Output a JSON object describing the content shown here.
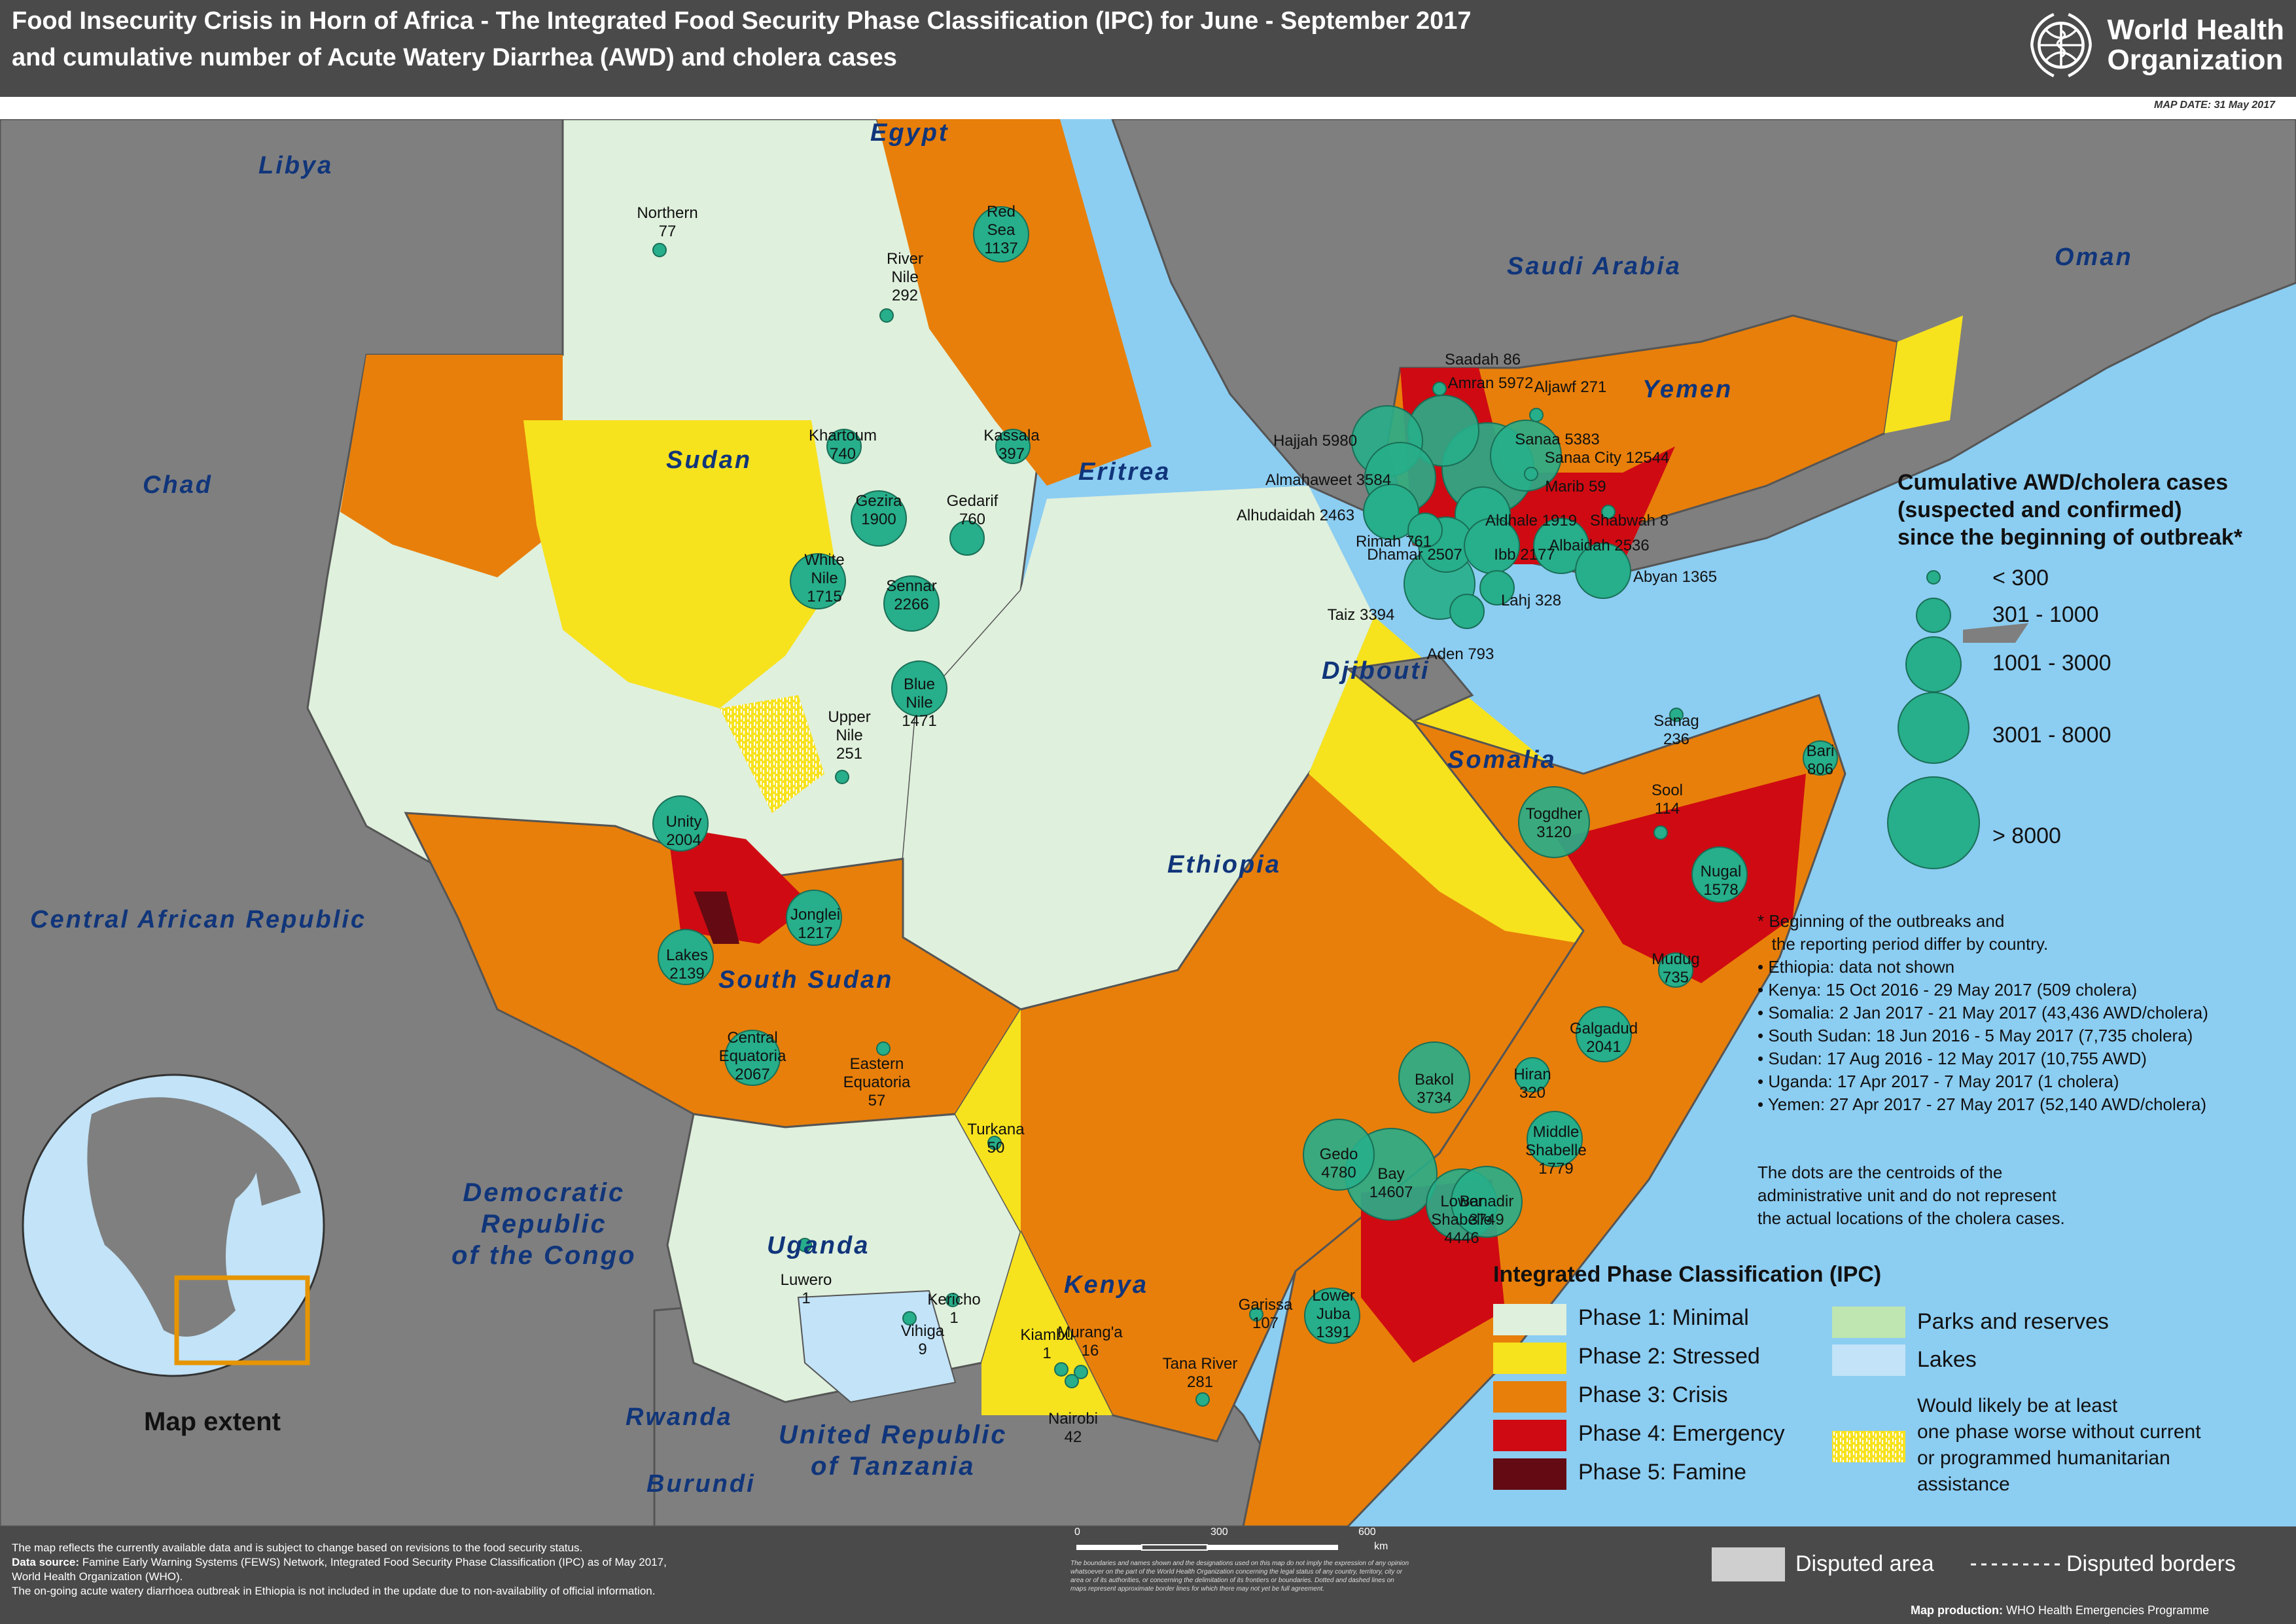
{
  "header": {
    "title_line1": "Food Insecurity Crisis in Horn of Africa - The Integrated Food Security Phase Classification (IPC) for June - September 2017",
    "title_line2": "and cumulative number of Acute Watery Diarrhea (AWD) and cholera cases",
    "logo_text_line1": "World Health",
    "logo_text_line2": "Organization",
    "map_date": "MAP DATE: 31 May 2017"
  },
  "colors": {
    "phase1": "#dff0dc",
    "phase2": "#f7e21e",
    "phase3": "#e87f0a",
    "phase4": "#cf0a12",
    "phase5": "#640a12",
    "parks": "#bfe6b0",
    "lakes": "#c2e3f8",
    "sea": "#8ccdf2",
    "other_land": "#7f7f7f",
    "circle": "#27ae8a",
    "header_bg": "#4a4a4a"
  },
  "countries": [
    {
      "key": "libya",
      "name": "Libya"
    },
    {
      "key": "egypt",
      "name": "Egypt"
    },
    {
      "key": "chad",
      "name": "Chad"
    },
    {
      "key": "sudan",
      "name": "Sudan"
    },
    {
      "key": "eritrea",
      "name": "Eritrea"
    },
    {
      "key": "saudi",
      "name": "Saudi Arabia"
    },
    {
      "key": "oman",
      "name": "Oman"
    },
    {
      "key": "yemen",
      "name": "Yemen"
    },
    {
      "key": "djibouti",
      "name": "Djibouti"
    },
    {
      "key": "somalia",
      "name": "Somalia"
    },
    {
      "key": "ethiopia",
      "name": "Ethiopia"
    },
    {
      "key": "car",
      "name": "Central African Republic"
    },
    {
      "key": "ssudan",
      "name": "South Sudan"
    },
    {
      "key": "drc",
      "name": "Democratic\nRepublic\nof the Congo"
    },
    {
      "key": "uganda",
      "name": "Uganda"
    },
    {
      "key": "kenya",
      "name": "Kenya"
    },
    {
      "key": "rwanda",
      "name": "Rwanda"
    },
    {
      "key": "burundi",
      "name": "Burundi"
    },
    {
      "key": "tanzania",
      "name": "United Republic\nof Tanzania"
    }
  ],
  "cases": [
    {
      "key": "northern",
      "name": "Northern",
      "value": 77,
      "size_class": 1,
      "text": "Northern\n77"
    },
    {
      "key": "redsea",
      "name": "Red Sea",
      "value": 1137,
      "size_class": 3,
      "text": "Red\nSea\n1137"
    },
    {
      "key": "rivernile",
      "name": "River Nile",
      "value": 292,
      "size_class": 1,
      "text": "River\nNile\n292"
    },
    {
      "key": "khartoum",
      "name": "Khartoum",
      "value": 740,
      "size_class": 2,
      "text": "Khartoum\n740"
    },
    {
      "key": "kassala",
      "name": "Kassala",
      "value": 397,
      "size_class": 2,
      "text": "Kassala\n397"
    },
    {
      "key": "gezira",
      "name": "Gezira",
      "value": 1900,
      "size_class": 3,
      "text": "Gezira\n1900"
    },
    {
      "key": "gedarif",
      "name": "Gedarif",
      "value": 760,
      "size_class": 2,
      "text": "Gedarif\n760"
    },
    {
      "key": "whitenile",
      "name": "White Nile",
      "value": 1715,
      "size_class": 3,
      "text": "White\nNile\n1715"
    },
    {
      "key": "sennar",
      "name": "Sennar",
      "value": 2266,
      "size_class": 3,
      "text": "Sennar\n2266"
    },
    {
      "key": "bluenile",
      "name": "Blue Nile",
      "value": 1471,
      "size_class": 3,
      "text": "Blue\nNile\n1471"
    },
    {
      "key": "uppernile",
      "name": "Upper Nile",
      "value": 251,
      "size_class": 1,
      "text": "Upper\nNile\n251"
    },
    {
      "key": "unity",
      "name": "Unity",
      "value": 2004,
      "size_class": 3,
      "text": "Unity\n2004"
    },
    {
      "key": "jonglei",
      "name": "Jonglei",
      "value": 1217,
      "size_class": 3,
      "text": "Jonglei\n1217"
    },
    {
      "key": "lakes",
      "name": "Lakes",
      "value": 2139,
      "size_class": 3,
      "text": "Lakes\n2139"
    },
    {
      "key": "centraleq",
      "name": "Central Equatoria",
      "value": 2067,
      "size_class": 3,
      "text": "Central\nEquatoria\n2067"
    },
    {
      "key": "easterneq",
      "name": "Eastern Equatoria",
      "value": 57,
      "size_class": 1,
      "text": "Eastern\nEquatoria\n57"
    },
    {
      "key": "turkana",
      "name": "Turkana",
      "value": 50,
      "size_class": 1,
      "text": "Turkana\n50"
    },
    {
      "key": "luwero",
      "name": "Luwero",
      "value": 1,
      "size_class": 1,
      "text": "Luwero\n1"
    },
    {
      "key": "kericho",
      "name": "Kericho",
      "value": 1,
      "size_class": 1,
      "text": "Kericho\n1"
    },
    {
      "key": "vihiga",
      "name": "Vihiga",
      "value": 9,
      "size_class": 1,
      "text": "Vihiga\n9"
    },
    {
      "key": "kiambu",
      "name": "Kiambu",
      "value": 1,
      "size_class": 1,
      "text": "Kiambu\n1"
    },
    {
      "key": "muranga",
      "name": "Murang'a",
      "value": 16,
      "size_class": 1,
      "text": "Murang'a\n16"
    },
    {
      "key": "nairobi",
      "name": "Nairobi",
      "value": 42,
      "size_class": 1,
      "text": "Nairobi\n42"
    },
    {
      "key": "garissa",
      "name": "Garissa",
      "value": 107,
      "size_class": 1,
      "text": "Garissa\n107"
    },
    {
      "key": "tanariver",
      "name": "Tana River",
      "value": 281,
      "size_class": 1,
      "text": "Tana River\n281"
    },
    {
      "key": "lowerjuba",
      "name": "Lower Juba",
      "value": 1391,
      "size_class": 3,
      "text": "Lower\nJuba\n1391"
    },
    {
      "key": "gedo",
      "name": "Gedo",
      "value": 4780,
      "size_class": 4,
      "text": "Gedo\n4780"
    },
    {
      "key": "bakol",
      "name": "Bakol",
      "value": 3734,
      "size_class": 4,
      "text": "Bakol\n3734"
    },
    {
      "key": "bay",
      "name": "Bay",
      "value": 14607,
      "size_class": 5,
      "text": "Bay\n14607"
    },
    {
      "key": "lowershabelle",
      "name": "Lower Shabelle",
      "value": 4446,
      "size_class": 4,
      "text": "Lower\nShabelle\n4446"
    },
    {
      "key": "banadir",
      "name": "Banadir",
      "value": 3749,
      "size_class": 4,
      "text": "Banadir\n3749"
    },
    {
      "key": "middleshabelle",
      "name": "Middle Shabelle",
      "value": 1779,
      "size_class": 3,
      "text": "Middle\nShabelle\n1779"
    },
    {
      "key": "hiran",
      "name": "Hiran",
      "value": 320,
      "size_class": 2,
      "text": "Hiran\n320"
    },
    {
      "key": "galgadud",
      "name": "Galgadud",
      "value": 2041,
      "size_class": 3,
      "text": "Galgadud\n2041"
    },
    {
      "key": "mudug",
      "name": "Mudug",
      "value": 735,
      "size_class": 2,
      "text": "Mudug\n735"
    },
    {
      "key": "nugal",
      "name": "Nugal",
      "value": 1578,
      "size_class": 3,
      "text": "Nugal\n1578"
    },
    {
      "key": "sool",
      "name": "Sool",
      "value": 114,
      "size_class": 1,
      "text": "Sool\n114"
    },
    {
      "key": "bari",
      "name": "Bari",
      "value": 806,
      "size_class": 2,
      "text": "Bari\n806"
    },
    {
      "key": "sanag",
      "name": "Sanag",
      "value": 236,
      "size_class": 1,
      "text": "Sanag\n236"
    },
    {
      "key": "togdher",
      "name": "Togdher",
      "value": 3120,
      "size_class": 4,
      "text": "Togdher\n3120"
    },
    {
      "key": "saadah",
      "name": "Saadah",
      "value": 86,
      "size_class": 1,
      "text": "Saadah 86"
    },
    {
      "key": "amran",
      "name": "Amran",
      "value": 5972,
      "size_class": 4,
      "text": "Amran 5972"
    },
    {
      "key": "aljawf",
      "name": "Aljawf",
      "value": 271,
      "size_class": 1,
      "text": "Aljawf 271"
    },
    {
      "key": "hajjah",
      "name": "Hajjah",
      "value": 5980,
      "size_class": 4,
      "text": "Hajjah 5980"
    },
    {
      "key": "sanaa",
      "name": "Sanaa",
      "value": 5383,
      "size_class": 4,
      "text": "Sanaa 5383"
    },
    {
      "key": "sanaacity",
      "name": "Sanaa City",
      "value": 12544,
      "size_class": 5,
      "text": "Sanaa City 12544"
    },
    {
      "key": "almahaweet",
      "name": "Almahaweet",
      "value": 3584,
      "size_class": 4,
      "text": "Almahaweet 3584"
    },
    {
      "key": "marib",
      "name": "Marib",
      "value": 59,
      "size_class": 1,
      "text": "Marib 59"
    },
    {
      "key": "alhudaidah",
      "name": "Alhudaidah",
      "value": 2463,
      "size_class": 3,
      "text": "Alhudaidah 2463"
    },
    {
      "key": "aldhale",
      "name": "Aldhale",
      "value": 1919,
      "size_class": 3,
      "text": "Aldhale 1919"
    },
    {
      "key": "shabwah",
      "name": "Shabwah",
      "value": 8,
      "size_class": 1,
      "text": "Shabwah 8"
    },
    {
      "key": "rimah",
      "name": "Rimah",
      "value": 761,
      "size_class": 2,
      "text": "Rimah 761"
    },
    {
      "key": "dhamar",
      "name": "Dhamar",
      "value": 2507,
      "size_class": 3,
      "text": "Dhamar 2507"
    },
    {
      "key": "ibb",
      "name": "Ibb",
      "value": 2177,
      "size_class": 3,
      "text": "Ibb 2177"
    },
    {
      "key": "albaidah",
      "name": "Albaidah",
      "value": 2536,
      "size_class": 3,
      "text": "Albaidah 2536"
    },
    {
      "key": "abyan",
      "name": "Abyan",
      "value": 1365,
      "size_class": 3,
      "text": "Abyan 1365"
    },
    {
      "key": "taiz",
      "name": "Taiz",
      "value": 3394,
      "size_class": 4,
      "text": "Taiz 3394"
    },
    {
      "key": "lahj",
      "name": "Lahj",
      "value": 328,
      "size_class": 2,
      "text": "Lahj 328"
    },
    {
      "key": "aden",
      "name": "Aden",
      "value": 793,
      "size_class": 2,
      "text": "Aden 793"
    }
  ],
  "circle_legend": {
    "title_line1": "Cumulative AWD/cholera cases",
    "title_line2": "(suspected and confirmed)",
    "title_line3": "since the beginning of outbreak*",
    "classes": [
      "< 300",
      "301 - 1000",
      "1001 - 3000",
      "3001 - 8000",
      "> 8000"
    ]
  },
  "notes": {
    "lines": [
      "* Beginning of the outbreaks and",
      "   the reporting period differ by country.",
      "• Ethiopia: data not shown",
      "• Kenya: 15 Oct 2016 - 29 May 2017 (509 cholera)",
      "• Somalia: 2 Jan 2017 - 21 May 2017 (43,436 AWD/cholera)",
      "• South Sudan: 18 Jun 2016 - 5 May 2017 (7,735 cholera)",
      "• Sudan: 17 Aug 2016 - 12 May 2017 (10,755 AWD)",
      "• Uganda: 17 Apr 2017 - 7 May 2017 (1 cholera)",
      "• Yemen: 27 Apr 2017 - 27 May 2017 (52,140 AWD/cholera)"
    ],
    "dots_line1": "The dots are the centroids of the",
    "dots_line2": "administrative unit and do not represent",
    "dots_line3": "the actual locations of the cholera cases."
  },
  "ipc_legend": {
    "title": "Integrated Phase Classification (IPC)",
    "phase1": "Phase 1: Minimal",
    "phase2": "Phase 2: Stressed",
    "phase3": "Phase 3: Crisis",
    "phase4": "Phase 4: Emergency",
    "phase5": "Phase 5: Famine",
    "parks": "Parks and reserves",
    "lakes": "Lakes",
    "worse_line1": "Would likely be at least",
    "worse_line2": "one phase worse without current",
    "worse_line3": "or programmed humanitarian",
    "worse_line4": "assistance"
  },
  "globe": {
    "label": "Map extent"
  },
  "scalebar": {
    "ticks": [
      "0",
      "300",
      "600"
    ],
    "unit": "km"
  },
  "footer": {
    "line1": "The map reflects the currently available data and  is subject to  change based on revisions to the food security status.",
    "line2_bold": "Data source:",
    "line2_rest": " Famine Early Warning Systems (FEWS) Network, Integrated Food Security Phase Classification (IPC) as of May 2017,",
    "line3": "World Health Organization (WHO).",
    "line4": "The on-going  acute watery diarrhoea outbreak in Ethiopia is not included in the update due to non-availability of official information.",
    "disclaimer": "The boundaries and names shown and the designations used on this map do not imply the expression of any opinion whatsoever on the part of the World Health Organization concerning the legal status of any country, territory, city or area or of its authorities, or concerning the delimitation of its frontiers or boundaries. Dotted and dashed lines on maps represent approximate border lines for which there may not yet be full agreement.",
    "disputed_area": "Disputed area",
    "disputed_borders": "Disputed borders",
    "production_bold": "Map production:",
    "production_rest": " WHO Health Emergencies Programme"
  }
}
